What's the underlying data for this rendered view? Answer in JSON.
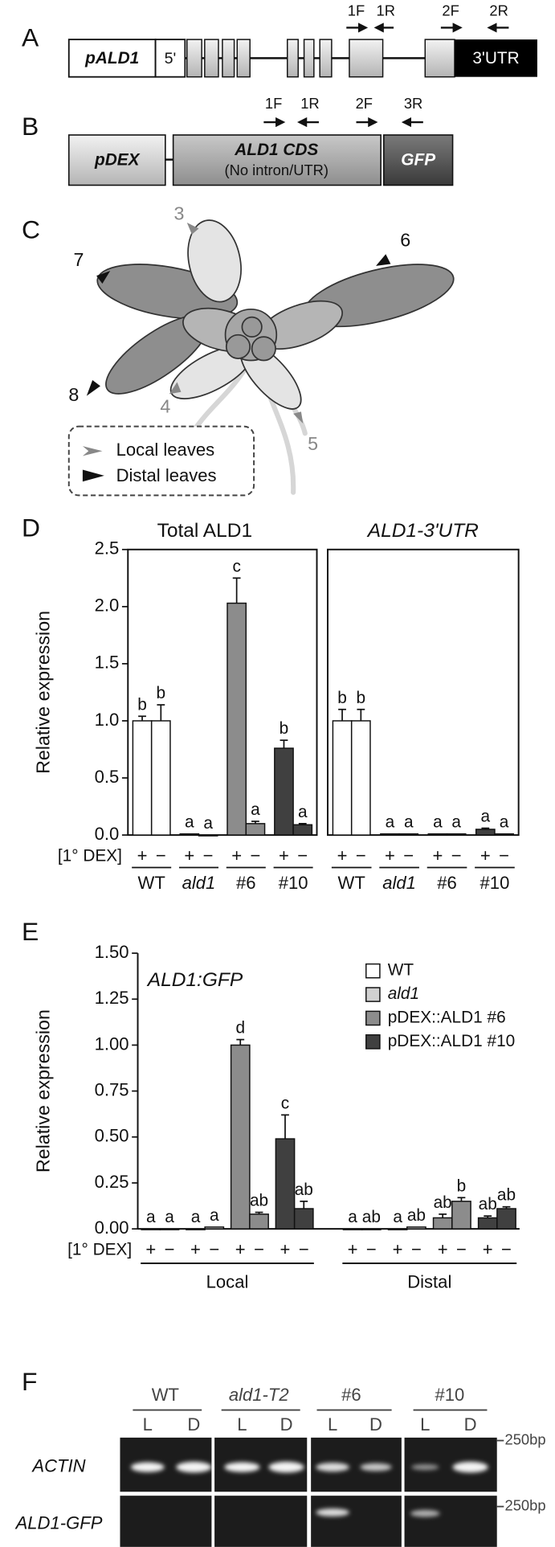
{
  "panel_a": {
    "label": "A",
    "promoter": "pALD1",
    "utr5": "5'",
    "utr3": "3'UTR",
    "primers": [
      "1F",
      "1R",
      "2F",
      "2R"
    ]
  },
  "panel_b": {
    "label": "B",
    "promoter": "pDEX",
    "cds": "ALD1 CDS",
    "cds_note": "(No intron/UTR)",
    "tag": "GFP",
    "primers": [
      "1F",
      "1R",
      "2F",
      "3R"
    ]
  },
  "panel_c": {
    "label": "C",
    "leaf_labels": [
      "3",
      "4",
      "5",
      "6",
      "7",
      "8"
    ],
    "legend": [
      "Local leaves",
      "Distal leaves"
    ]
  },
  "chart_data": [
    {
      "type": "bar",
      "panel_label": "D",
      "title": "Total ALD1",
      "y_label": "Relative expression",
      "dex_label": "[1° DEX]",
      "ylim": [
        0,
        2.5
      ],
      "yticks": [
        {
          "value": 0,
          "label": "0.0"
        },
        0.5,
        {
          "value": 1,
          "label": "1.0"
        },
        1.5,
        {
          "value": 2,
          "label": "2.0"
        },
        2.5
      ],
      "categories": [
        "+",
        "−",
        "+",
        "−",
        "+",
        "−",
        "+",
        "−"
      ],
      "groups": [
        "WT",
        "ald1",
        "#6",
        "#10"
      ],
      "colors": [
        "#ffffff",
        "#c8c8c8",
        "#8c8c8c",
        "#404040"
      ],
      "clusters": [
        {
          "values": [
            1.0,
            1.0,
            0.01,
            0.0,
            2.03,
            0.1,
            0.76,
            0.09
          ],
          "errors": [
            0.04,
            0.14,
            0.0,
            0.0,
            0.22,
            0.02,
            0.07,
            0.01
          ],
          "letters": [
            "b",
            "b",
            "a",
            "a",
            "c",
            "a",
            "b",
            "a"
          ]
        }
      ]
    },
    {
      "type": "bar",
      "title": "ALD1-3'UTR",
      "ylim": [
        0,
        2.5
      ],
      "categories": [
        "+",
        "−",
        "+",
        "−",
        "+",
        "−",
        "+",
        "−"
      ],
      "groups": [
        "WT",
        "ald1",
        "#6",
        "#10"
      ],
      "colors": [
        "#ffffff",
        "#c8c8c8",
        "#8c8c8c",
        "#404040"
      ],
      "clusters": [
        {
          "values": [
            1.0,
            1.0,
            0.01,
            0.01,
            0.01,
            0.01,
            0.05,
            0.01
          ],
          "errors": [
            0.1,
            0.1,
            0.0,
            0.0,
            0.0,
            0.0,
            0.01,
            0.0
          ],
          "letters": [
            "b",
            "b",
            "a",
            "a",
            "a",
            "a",
            "a",
            "a"
          ]
        }
      ]
    },
    {
      "type": "bar",
      "panel_label": "E",
      "title": "ALD1:GFP",
      "y_label": "Relative expression",
      "dex_label": "[1° DEX]",
      "ylim": [
        0,
        1.5
      ],
      "yticks": [
        {
          "value": 0,
          "label": "0.00"
        },
        0.25,
        {
          "value": 0.5,
          "label": "0.50"
        },
        0.75,
        {
          "value": 1,
          "label": "1.00"
        },
        1.25,
        {
          "value": 1.5,
          "label": "1.50"
        }
      ],
      "categories": [
        "+",
        "−",
        "+",
        "−",
        "+",
        "−",
        "+",
        "−"
      ],
      "legend": [
        "WT",
        "ald1",
        "pDEX::ALD1 #6",
        "pDEX::ALD1 #10"
      ],
      "colors": [
        "#ffffff",
        "#d0d0d0",
        "#8c8c8c",
        "#404040"
      ],
      "clusters": [
        {
          "name": "Local",
          "values": [
            0,
            0,
            0,
            0.01,
            1.0,
            0.08,
            0.49,
            0.11
          ],
          "errors": [
            0,
            0,
            0,
            0,
            0.03,
            0.01,
            0.13,
            0.04
          ],
          "letters": [
            "a",
            "a",
            "a",
            "a",
            "d",
            "ab",
            "c",
            "ab"
          ]
        },
        {
          "name": "Distal",
          "values": [
            0,
            0,
            0,
            0.01,
            0.06,
            0.15,
            0.06,
            0.11
          ],
          "errors": [
            0,
            0,
            0,
            0,
            0.02,
            0.02,
            0.01,
            0.01
          ],
          "letters": [
            "a",
            "ab",
            "a",
            "ab",
            "ab",
            "b",
            "ab",
            "ab"
          ]
        }
      ]
    }
  ],
  "panel_f": {
    "label": "F",
    "groups": [
      "WT",
      "ald1-T2",
      "#6",
      "#10"
    ],
    "lanes": [
      "L",
      "D",
      "L",
      "D",
      "L",
      "D",
      "L",
      "D"
    ],
    "rows": [
      "ACTIN",
      "ALD1-GFP"
    ],
    "markers": [
      "250bp",
      "250bp"
    ]
  }
}
